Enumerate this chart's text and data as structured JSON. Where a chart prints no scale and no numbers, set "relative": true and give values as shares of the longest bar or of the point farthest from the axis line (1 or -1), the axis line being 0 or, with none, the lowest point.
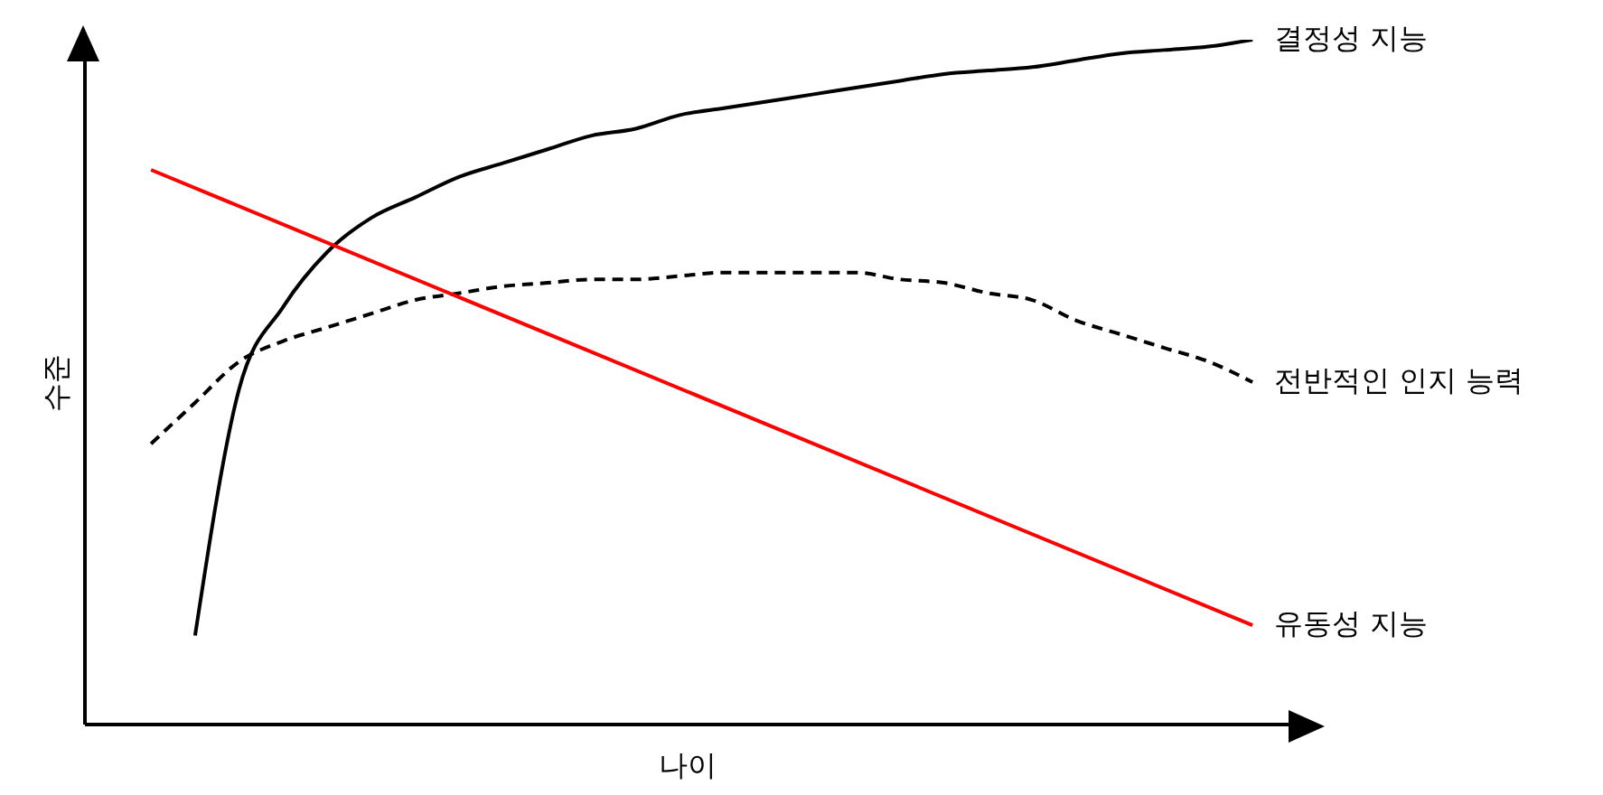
{
  "chart_data": {
    "type": "line",
    "relative": true,
    "xlabel": "나이",
    "ylabel": "수준",
    "categories": [
      null,
      null,
      null,
      null,
      null,
      null,
      null,
      null,
      null,
      null,
      null,
      null,
      null,
      null,
      null,
      null,
      null,
      null,
      null,
      null,
      null,
      null,
      null,
      null,
      null,
      null
    ],
    "series": [
      {
        "name": "결정성 지능",
        "color": "#000000",
        "line_style": "solid",
        "values": [
          null,
          0.13,
          0.49,
          0.61,
          0.69,
          0.74,
          0.77,
          0.8,
          0.82,
          0.84,
          0.86,
          0.87,
          0.89,
          0.9,
          0.91,
          0.92,
          0.93,
          0.94,
          0.95,
          0.955,
          0.96,
          0.97,
          0.98,
          0.985,
          0.99,
          1
        ]
      },
      {
        "name": "전반적인 인지 능력",
        "color": "#000000",
        "line_style": "dashed",
        "values": [
          0.41,
          0.47,
          0.53,
          0.56,
          0.58,
          0.6,
          0.62,
          0.63,
          0.64,
          0.645,
          0.65,
          0.65,
          0.655,
          0.66,
          0.66,
          0.66,
          0.66,
          0.65,
          0.645,
          0.63,
          0.62,
          0.59,
          0.57,
          0.55,
          0.53,
          0.5
        ]
      },
      {
        "name": "유동성 지능",
        "color": "#ff0000",
        "line_style": "solid",
        "values": [
          0.81,
          null,
          null,
          null,
          null,
          null,
          null,
          null,
          null,
          null,
          null,
          null,
          null,
          null,
          null,
          null,
          null,
          null,
          null,
          null,
          null,
          null,
          null,
          null,
          null,
          0.145
        ]
      }
    ]
  }
}
